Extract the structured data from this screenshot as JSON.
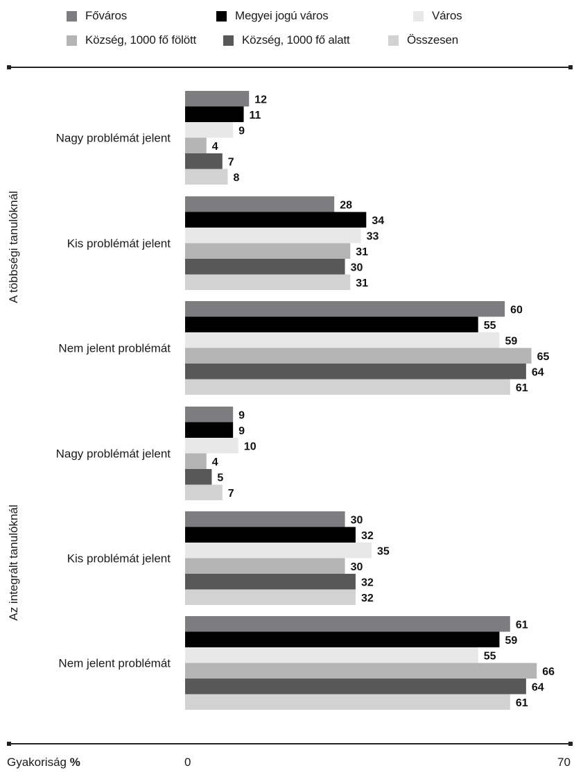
{
  "legend": {
    "items": [
      {
        "label": "Főváros",
        "color": "#7d7d80"
      },
      {
        "label": "Megyei jogú város",
        "color": "#000000"
      },
      {
        "label": "Város",
        "color": "#e8e8e8"
      },
      {
        "label": "Község, 1000 fő fölött",
        "color": "#b4b4b4"
      },
      {
        "label": "Község, 1000 fő alatt",
        "color": "#585858"
      },
      {
        "label": "Összesen",
        "color": "#d2d2d2"
      }
    ]
  },
  "footer": {
    "axis_title_prefix": "Gyakoriság ",
    "axis_title_unit": "%",
    "xmin_label": "0",
    "xmax_label": "70"
  },
  "chart_data": {
    "type": "bar",
    "orientation": "horizontal",
    "xlim": [
      0,
      70
    ],
    "xlabel": "Gyakoriság %",
    "grid": false,
    "legend_position": "top",
    "groups": [
      {
        "name": "A többségi tanulóknál",
        "categories": [
          "Nagy problémát jelent",
          "Kis problémát jelent",
          "Nem jelent problémát"
        ],
        "series": [
          {
            "name": "Főváros",
            "values": [
              12,
              28,
              60
            ]
          },
          {
            "name": "Megyei jogú város",
            "values": [
              11,
              34,
              55
            ]
          },
          {
            "name": "Város",
            "values": [
              9,
              33,
              59
            ]
          },
          {
            "name": "Község, 1000 fő fölött",
            "values": [
              4,
              31,
              65
            ]
          },
          {
            "name": "Község, 1000 fő alatt",
            "values": [
              7,
              30,
              64
            ]
          },
          {
            "name": "Összesen",
            "values": [
              8,
              31,
              61
            ]
          }
        ]
      },
      {
        "name": "Az integrált tanulóknál",
        "categories": [
          "Nagy problémát jelent",
          "Kis problémát jelent",
          "Nem jelent problémát"
        ],
        "series": [
          {
            "name": "Főváros",
            "values": [
              9,
              30,
              61
            ]
          },
          {
            "name": "Megyei jogú város",
            "values": [
              9,
              32,
              59
            ]
          },
          {
            "name": "Város",
            "values": [
              10,
              35,
              55
            ]
          },
          {
            "name": "Község, 1000 fő fölött",
            "values": [
              4,
              30,
              66
            ]
          },
          {
            "name": "Község, 1000 fő alatt",
            "values": [
              5,
              32,
              64
            ]
          },
          {
            "name": "Összesen",
            "values": [
              7,
              32,
              61
            ]
          }
        ]
      }
    ]
  }
}
